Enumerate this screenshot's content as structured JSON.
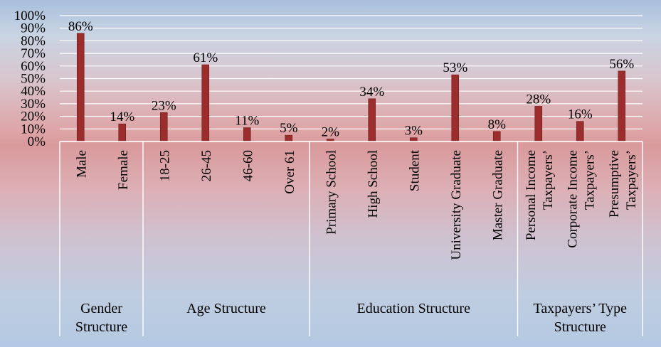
{
  "chart_data": {
    "type": "bar",
    "ylim": [
      0,
      100
    ],
    "y_ticks": [
      "0%",
      "10%",
      "20%",
      "30%",
      "40%",
      "50%",
      "60%",
      "70%",
      "80%",
      "90%",
      "100%"
    ],
    "grid": true,
    "bar_color": "#9b2d2d",
    "categories": [
      [
        "Male"
      ],
      [
        "Female"
      ],
      [
        "18-25"
      ],
      [
        "26-45"
      ],
      [
        "46-60"
      ],
      [
        "Over 61"
      ],
      [
        "Primary School"
      ],
      [
        "High School"
      ],
      [
        "Student"
      ],
      [
        "University Graduate"
      ],
      [
        "Master Graduate"
      ],
      [
        "Personal Income",
        "Taxpayers’"
      ],
      [
        "Corporate Income",
        "Taxpayers’"
      ],
      [
        "Presumptive",
        "Taxpayers’"
      ]
    ],
    "values": [
      86,
      14,
      23,
      61,
      11,
      5,
      2,
      34,
      3,
      53,
      8,
      28,
      16,
      56
    ],
    "data_labels": [
      "86%",
      "14%",
      "23%",
      "61%",
      "11%",
      "5%",
      "2%",
      "34%",
      "3%",
      "53%",
      "8%",
      "28%",
      "16%",
      "56%"
    ],
    "groups": [
      {
        "label": [
          "Gender",
          "Structure"
        ],
        "count": 2
      },
      {
        "label": [
          "Age Structure"
        ],
        "count": 4
      },
      {
        "label": [
          "Education Structure"
        ],
        "count": 5
      },
      {
        "label": [
          "Taxpayers’ Type",
          "Structure"
        ],
        "count": 3
      }
    ]
  }
}
